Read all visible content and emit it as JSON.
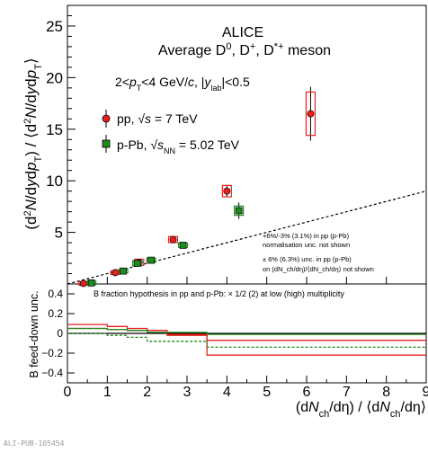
{
  "figure_id": "ALI-PUB-105454",
  "chart_data": [
    {
      "type": "scatter",
      "xlabel": "(dN_ch/dη) / ⟨dN_ch/dη⟩",
      "ylabel": "(d²N/dydp_T) / ⟨d²N/dydp_T⟩",
      "xlim": [
        0,
        9
      ],
      "ylim": [
        0,
        27
      ],
      "xticks": [
        0,
        1,
        2,
        3,
        4,
        5,
        6,
        7,
        8,
        9
      ],
      "yticks": [
        5,
        10,
        15,
        20,
        25
      ],
      "legend": {
        "experiment": "ALICE",
        "particles": "Average D⁰, D⁺, D*⁺ meson",
        "kinematics": "2<p_T<4 GeV/c, |y_lab|<0.5",
        "pp_label": "pp, √s = 7 TeV",
        "ppb_label": "p-Pb, √s_NN = 5.02 TeV",
        "placement": "top-left"
      },
      "annotations": [
        "+6%/-3% (3.1%) in pp (p-Pb)",
        "normalisation unc. not shown",
        "± 6% (6.3%) unc. in pp (p-Pb)",
        "on (dN_ch/dη)/⟨dN_ch/dη⟩ not shown"
      ],
      "reference_line": {
        "style": "dashed",
        "x": [
          0,
          9
        ],
        "y": [
          0,
          9
        ]
      },
      "series": [
        {
          "name": "pp, √s = 7 TeV",
          "color": "#e8211d",
          "marker": "circle",
          "points": [
            {
              "x": 0.4,
              "y": 0.05,
              "err": 0.1,
              "sys": 0.1
            },
            {
              "x": 1.2,
              "y": 1.1,
              "err": 0.1,
              "sys": 0.15
            },
            {
              "x": 1.8,
              "y": 2.1,
              "err": 0.2,
              "sys": 0.3
            },
            {
              "x": 2.65,
              "y": 4.3,
              "err": 0.2,
              "sys": 0.3
            },
            {
              "x": 4.0,
              "y": 9.0,
              "err": 0.6,
              "sys": 0.55
            },
            {
              "x": 6.1,
              "y": 16.5,
              "err": 2.6,
              "sys": 2.1
            }
          ]
        },
        {
          "name": "p-Pb, √s_NN = 5.02 TeV",
          "color": "#1f8a1f",
          "marker": "square",
          "points": [
            {
              "x": 0.6,
              "y": 0.1,
              "err": 0.1,
              "sys": 0.1
            },
            {
              "x": 1.4,
              "y": 1.25,
              "err": 0.15,
              "sys": 0.15
            },
            {
              "x": 1.75,
              "y": 2.0,
              "err": 0.2,
              "sys": 0.25
            },
            {
              "x": 2.1,
              "y": 2.3,
              "err": 0.2,
              "sys": 0.2
            },
            {
              "x": 2.9,
              "y": 3.75,
              "err": 0.2,
              "sys": 0.2
            },
            {
              "x": 4.3,
              "y": 7.1,
              "err": 0.8,
              "sys": 0.45
            }
          ]
        }
      ]
    },
    {
      "type": "line",
      "ylabel": "B feed-down unc.",
      "xlabel": "(dN_ch/dη) / ⟨dN_ch/dη⟩",
      "xlim": [
        0,
        9
      ],
      "ylim": [
        -0.5,
        0.5
      ],
      "yticks": [
        -0.4,
        -0.2,
        0,
        0.2,
        0.4
      ],
      "yticklabels": [
        "−0.4",
        "−0.2",
        "0",
        "0.2",
        "0.4"
      ],
      "xticks": [
        0,
        1,
        2,
        3,
        4,
        5,
        6,
        7,
        8,
        9
      ],
      "annotation": "B fraction hypothesis in pp and p-Pb: × 1/2 (2) at low (high) multiplicity",
      "series": [
        {
          "color": "#e8211d",
          "style": "solid",
          "edges": [
            0,
            1,
            1.5,
            2,
            2.5,
            3.5,
            9
          ],
          "values": [
            0.09,
            0.07,
            0.05,
            0.03,
            -0.02,
            -0.22
          ]
        },
        {
          "color": "#e8211d",
          "style": "solid",
          "edges": [
            0,
            1,
            1.5,
            2,
            2.5,
            3.5,
            9
          ],
          "values": [
            0.05,
            0.04,
            0.03,
            0.01,
            -0.01,
            -0.07
          ]
        },
        {
          "color": "#1f8a1f",
          "style": "solid",
          "edges": [
            0,
            1,
            1.5,
            2,
            3.5,
            9
          ],
          "values": [
            0.05,
            0.04,
            0.03,
            0.01,
            -0.01
          ]
        },
        {
          "color": "#1f8a1f",
          "style": "dashed",
          "edges": [
            0,
            1,
            1.5,
            2,
            3.5,
            9
          ],
          "values": [
            0.0,
            -0.02,
            -0.04,
            -0.08,
            -0.14
          ]
        }
      ]
    }
  ]
}
